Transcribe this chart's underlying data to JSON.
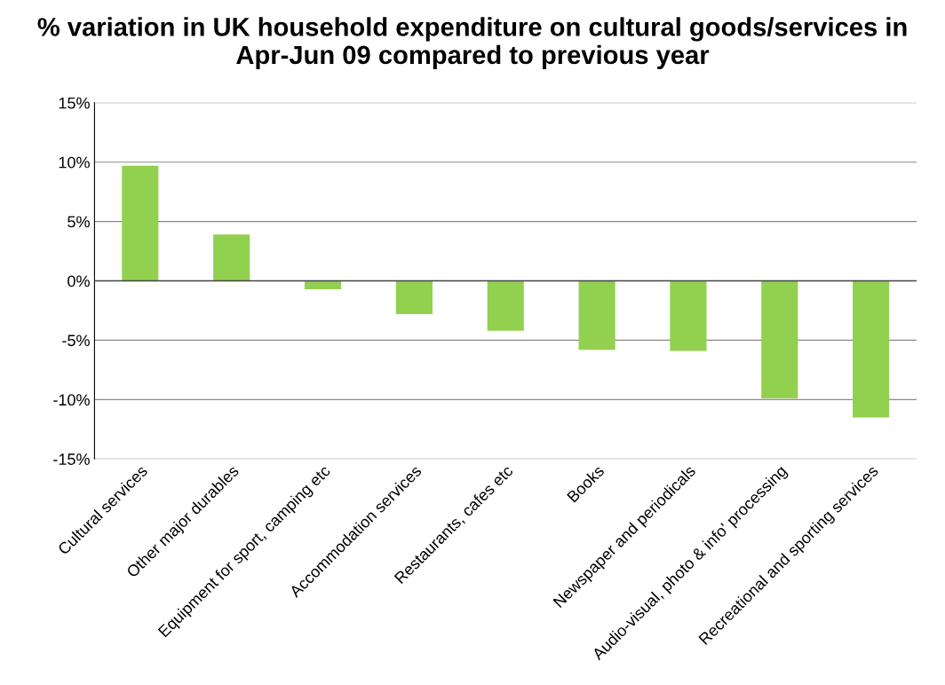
{
  "chart_data": {
    "type": "bar",
    "title": "% variation in UK household expenditure on cultural goods/services in Apr-Jun 09 compared to previous year",
    "categories": [
      "Cultural services",
      "Other major durables",
      "Equipment for sport, camping etc",
      "Accommodation services",
      "Restaurants, cafes etc",
      "Books",
      "Newspaper and periodicals",
      "Audio-visual, photo & info' processing",
      "Recreational and sporting services"
    ],
    "values": [
      9.7,
      3.9,
      -0.7,
      -2.8,
      -4.2,
      -5.8,
      -5.9,
      -9.9,
      -11.5
    ],
    "color": "#92d050",
    "ylim": [
      -15,
      15
    ],
    "yticks": [
      {
        "value": -15,
        "label": "-15%"
      },
      {
        "value": -10,
        "label": "-10%"
      },
      {
        "value": -5,
        "label": "-5%"
      },
      {
        "value": 0,
        "label": "0%"
      },
      {
        "value": 5,
        "label": "5%"
      },
      {
        "value": 10,
        "label": "10%"
      },
      {
        "value": 15,
        "label": "15%"
      }
    ],
    "grid": "y"
  }
}
